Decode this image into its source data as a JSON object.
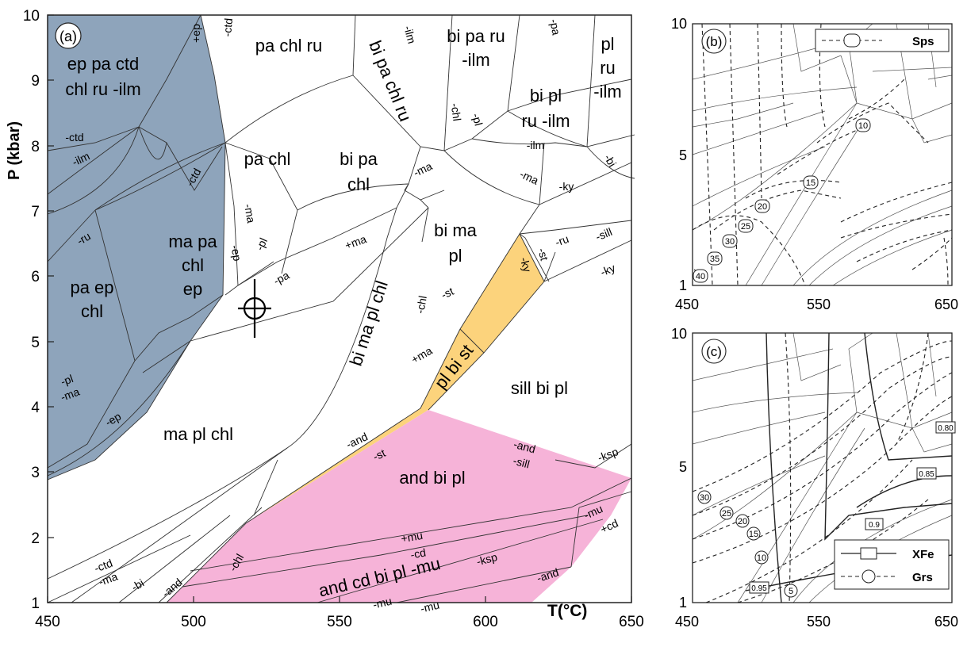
{
  "main": {
    "panel_label": "(a)",
    "xlabel": "T(°C)",
    "ylabel": "P (kbar)",
    "x_ticks": [
      "450",
      "500",
      "550",
      "600",
      "650"
    ],
    "y_ticks": [
      "1",
      "2",
      "3",
      "4",
      "5",
      "6",
      "7",
      "8",
      "9",
      "10"
    ],
    "fields": {
      "ep_pa_ctd_chl_ru_ilm_l1": "ep pa ctd",
      "ep_pa_ctd_chl_ru_ilm_l2": "chl ru -ilm",
      "pa_chl_ru": "pa chl ru",
      "bi_pa_chl_ru": "bi pa chl ru",
      "bi_pa_ru_ilm_l1": "bi pa ru",
      "bi_pa_ru_ilm_l2": "-ilm",
      "pl_ru_ilm_l1": "pl",
      "pl_ru_ilm_l2": "ru",
      "pl_ru_ilm_l3": "-ilm",
      "bi_pl_ru_ilm_l1": "bi pl",
      "bi_pl_ru_ilm_l2": "ru -ilm",
      "pa_chl": "pa chl",
      "bi_pa_chl_l1": "bi pa",
      "bi_pa_chl_l2": "chl",
      "ma_pa_chl_ep_l1": "ma pa",
      "ma_pa_chl_ep_l2": "chl",
      "ma_pa_chl_ep_l3": "ep",
      "pa_ep_chl_l1": "pa ep",
      "pa_ep_chl_l2": "chl",
      "bi_ma_pl_l1": "bi ma",
      "bi_ma_pl_l2": "pl",
      "bi_ma_pl_chl": "bi ma pl chl",
      "pl_bi_st": "pl bi st",
      "sill_bi_pl": "sill bi pl",
      "ma_pl_chl": "ma pl chl",
      "and_bi_pl": "and bi pl",
      "and_cd_bi_pl_mu": "and cd bi pl -mu"
    },
    "reaction_labels": {
      "pep": "+ep",
      "mctd_top": "-ctd",
      "milm_top": "-ilm",
      "mpa_top": "-pa",
      "mchl_top": "-chl",
      "mpl_top": "-pl",
      "milm_mid": "-ilm",
      "mbi_top": "-bi",
      "mctd_left": "-ctd",
      "milm_left": "-ilm",
      "mctd_mid": "-ctd",
      "mru_left": "-ru",
      "mma_a": "-ma",
      "mma_b": "-ma",
      "mma_c": "-ma",
      "mky_top": "-ky",
      "mep_mid": "-ep",
      "mpl_mid": "-pl",
      "pma_mid": "+ma",
      "mpa_mid": "-pa",
      "mchl_mid": "-chl",
      "mst_mid": "-st",
      "mky_right": "-ky",
      "mst_right": "-st",
      "mru_right": "-ru",
      "msill_right": "-sill",
      "mky_right2": "-ky",
      "pma_low": "+ma",
      "mpl_low": "-pl",
      "mma_low": "-ma",
      "mep_low": "-ep",
      "mand_yel": "-and",
      "mst_yel": "-st",
      "mand_pink": "-and",
      "msill_pink": "-sill",
      "mksp_right": "-ksp",
      "mmu_right": "-mu",
      "pcd_right": "+cd",
      "pmu": "+mu",
      "mcd": "-cd",
      "mksp_low": "-ksp",
      "mand_low": "-and",
      "mmu_a": "-mu",
      "mmu_b": "-mu",
      "mchl_low": "-chl",
      "mand_bot": "-and",
      "mbi_bot": "-bi",
      "mctd_bot": "-ctd",
      "mma_bot": "-ma"
    }
  },
  "panel_b": {
    "panel_label": "(b)",
    "legend_label": "Sps",
    "x_ticks": [
      "450",
      "550",
      "650"
    ],
    "y_ticks": [
      "1",
      "5",
      "10"
    ],
    "isopleths": [
      "10",
      "15",
      "20",
      "25",
      "30",
      "35",
      "40"
    ]
  },
  "panel_c": {
    "panel_label": "(c)",
    "legend_xfe": "XFe",
    "legend_grs": "Grs",
    "x_ticks": [
      "450",
      "550",
      "650"
    ],
    "y_ticks": [
      "1",
      "5",
      "10"
    ],
    "xfe_labels": [
      "0.80",
      "0.85",
      "0.9",
      "0.95"
    ],
    "grs_labels": [
      "30",
      "25",
      "20",
      "15",
      "10",
      "5"
    ]
  },
  "colors": {
    "blue_field": "#8ea4bb",
    "yellow_field": "#fcd37c",
    "pink_field": "#f6b3d8",
    "line": "#333333"
  }
}
